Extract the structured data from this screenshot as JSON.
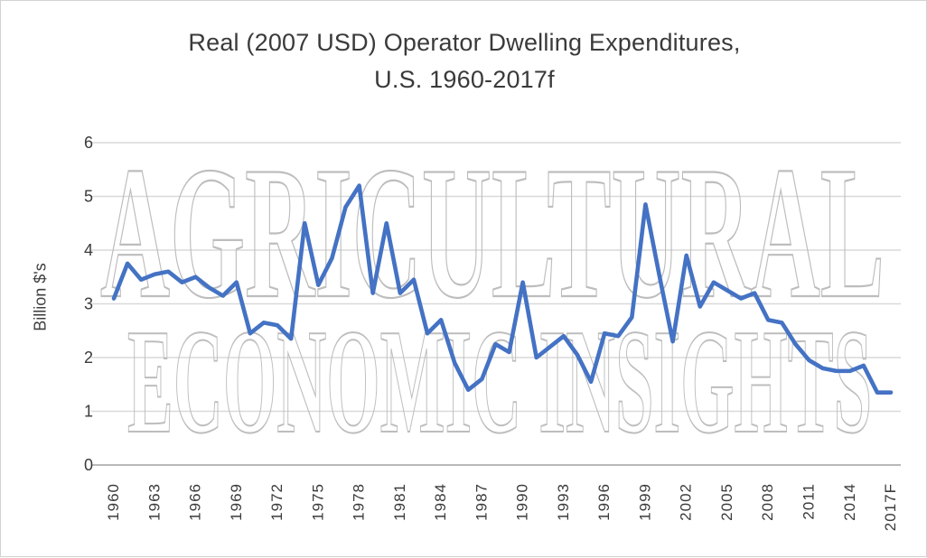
{
  "title": {
    "line1": "Real (2007 USD) Operator Dwelling Expenditures,",
    "line2": "U.S. 1960-2017f"
  },
  "watermark": {
    "line1": "AGRICULTURAL",
    "line2": "ECONOMIC INSIGHTS"
  },
  "chart_data": {
    "type": "line",
    "title": "Real (2007 USD) Operator Dwelling Expenditures, U.S. 1960-2017f",
    "xlabel": "",
    "ylabel": "Billion $'s",
    "ylim": [
      0,
      6
    ],
    "yticks": [
      0,
      1,
      2,
      3,
      4,
      5,
      6
    ],
    "xtick_labels": [
      "1960",
      "1963",
      "1966",
      "1969",
      "1972",
      "1975",
      "1978",
      "1981",
      "1984",
      "1987",
      "1990",
      "1993",
      "1996",
      "1999",
      "2002",
      "2005",
      "2008",
      "2011",
      "2014",
      "2017F"
    ],
    "grid": true,
    "legend_position": "none",
    "line_color": "#4472C4",
    "gridline_color": "#d9d9d9",
    "axis_line_color": "#b9b9b9",
    "watermark_color": "#bdbdbd",
    "x": [
      1960,
      1961,
      1962,
      1963,
      1964,
      1965,
      1966,
      1967,
      1968,
      1969,
      1970,
      1971,
      1972,
      1973,
      1974,
      1975,
      1976,
      1977,
      1978,
      1979,
      1980,
      1981,
      1982,
      1983,
      1984,
      1985,
      1986,
      1987,
      1988,
      1989,
      1990,
      1991,
      1992,
      1993,
      1994,
      1995,
      1996,
      1997,
      1998,
      1999,
      2000,
      2001,
      2002,
      2003,
      2004,
      2005,
      2006,
      2007,
      2008,
      2009,
      2010,
      2011,
      2012,
      2013,
      2014,
      2015,
      2016,
      2017
    ],
    "values": [
      3.1,
      3.75,
      3.45,
      3.55,
      3.6,
      3.4,
      3.5,
      3.3,
      3.15,
      3.4,
      2.45,
      2.65,
      2.6,
      2.35,
      4.5,
      3.35,
      3.85,
      4.8,
      5.2,
      3.2,
      4.5,
      3.2,
      3.45,
      2.45,
      2.7,
      1.9,
      1.4,
      1.6,
      2.25,
      2.1,
      3.4,
      2.0,
      2.2,
      2.4,
      2.05,
      1.55,
      2.45,
      2.4,
      2.75,
      4.85,
      3.55,
      2.3,
      3.9,
      2.95,
      3.4,
      3.25,
      3.1,
      3.2,
      2.7,
      2.65,
      2.25,
      1.95,
      1.8,
      1.75,
      1.75,
      1.85,
      1.35,
      1.35
    ]
  }
}
